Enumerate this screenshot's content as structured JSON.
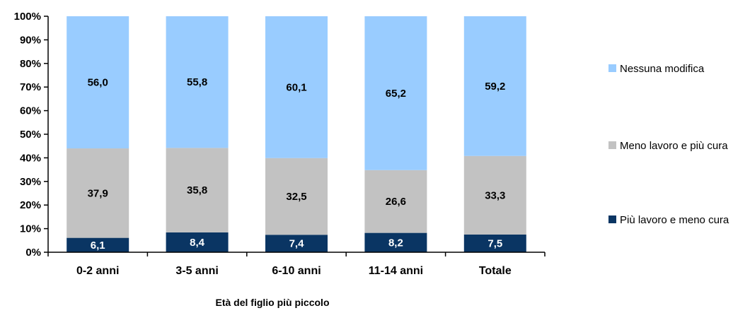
{
  "chart_data": {
    "type": "bar",
    "stacked": true,
    "percent": true,
    "categories": [
      "0-2 anni",
      "3-5 anni",
      "6-10 anni",
      "11-14 anni",
      "Totale"
    ],
    "series": [
      {
        "name": "Più lavoro e meno cura",
        "values": [
          6.1,
          8.4,
          7.4,
          8.2,
          7.5
        ],
        "value_labels": [
          "6,1",
          "8,4",
          "7,4",
          "8,2",
          "7,5"
        ],
        "color": "#0a3563",
        "label_color": "#ffffff"
      },
      {
        "name": "Meno lavoro e più cura",
        "values": [
          37.9,
          35.8,
          32.5,
          26.6,
          33.3
        ],
        "value_labels": [
          "37,9",
          "35,8",
          "32,5",
          "26,6",
          "33,3"
        ],
        "color": "#c2c2c2",
        "label_color": "#000000"
      },
      {
        "name": "Nessuna modifica",
        "values": [
          56.0,
          55.8,
          60.1,
          65.2,
          59.2
        ],
        "value_labels": [
          "56,0",
          "55,8",
          "60,1",
          "65,2",
          "59,2"
        ],
        "color": "#99ccff",
        "label_color": "#000000"
      }
    ],
    "y_ticks": [
      "0%",
      "10%",
      "20%",
      "30%",
      "40%",
      "50%",
      "60%",
      "70%",
      "80%",
      "90%",
      "100%"
    ],
    "ylim": [
      0,
      100
    ],
    "xlabel": "Età del figlio più piccolo",
    "ylabel": "",
    "title": "",
    "grid": false,
    "legend_position": "right",
    "legend_order": [
      "Nessuna modifica",
      "Meno lavoro e più cura",
      "Più lavoro e meno cura"
    ]
  }
}
